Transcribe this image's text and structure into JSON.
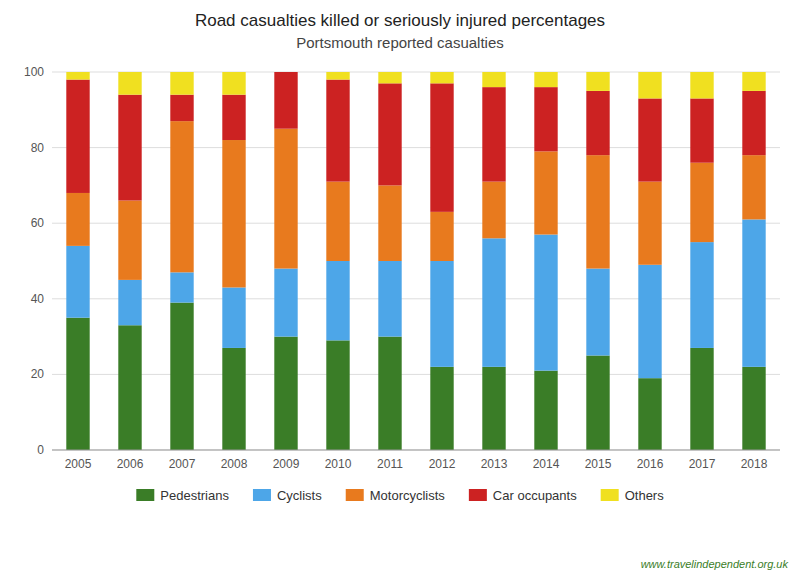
{
  "chart_data": {
    "type": "bar",
    "stacked": true,
    "title": "Road casualties killed or seriously injured percentages",
    "subtitle": "Portsmouth reported casualties",
    "annotations": [
      "www.travelindependent.org.uk"
    ],
    "categories": [
      "2005",
      "2006",
      "2007",
      "2008",
      "2009",
      "2010",
      "2011",
      "2012",
      "2013",
      "2014",
      "2015",
      "2016",
      "2017",
      "2018"
    ],
    "series": [
      {
        "name": "Pedestrians",
        "color": "#3a7d27",
        "values": [
          35,
          33,
          39,
          27,
          30,
          29,
          30,
          22,
          22,
          21,
          25,
          19,
          27,
          22
        ]
      },
      {
        "name": "Cyclists",
        "color": "#4da6e8",
        "values": [
          19,
          12,
          8,
          16,
          18,
          21,
          20,
          28,
          34,
          36,
          23,
          30,
          28,
          39
        ]
      },
      {
        "name": "Motorcyclists",
        "color": "#e87a1e",
        "values": [
          14,
          21,
          40,
          39,
          37,
          21,
          20,
          13,
          15,
          22,
          30,
          22,
          21,
          17
        ]
      },
      {
        "name": "Car occupants",
        "color": "#cc2222",
        "values": [
          30,
          28,
          7,
          12,
          15,
          27,
          27,
          34,
          25,
          17,
          17,
          22,
          17,
          17
        ]
      },
      {
        "name": "Others",
        "color": "#f0e020",
        "values": [
          2,
          6,
          6,
          6,
          0,
          2,
          3,
          3,
          4,
          4,
          5,
          7,
          7,
          5
        ]
      }
    ],
    "ylim": [
      0,
      100
    ],
    "yticks": [
      0,
      20,
      40,
      60,
      80,
      100
    ],
    "grid": true,
    "legend": "bottom"
  }
}
